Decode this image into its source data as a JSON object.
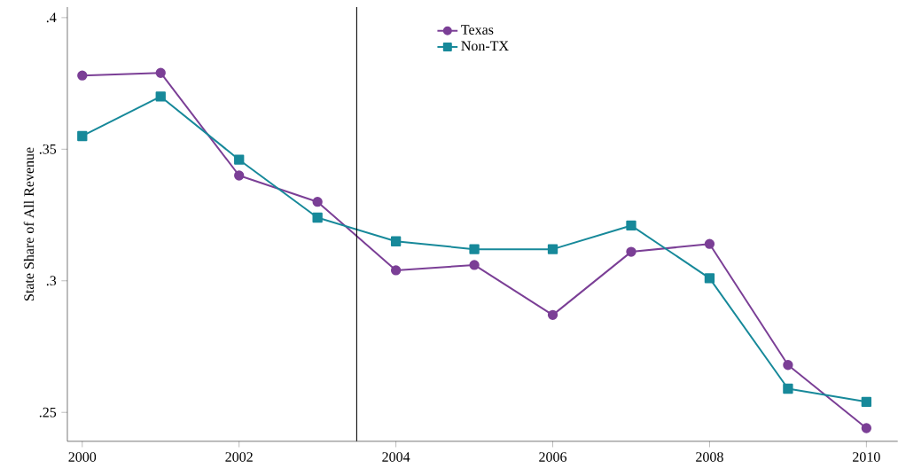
{
  "chart_data": {
    "type": "line",
    "ylabel": "State Share of All Revenue",
    "x": [
      2000,
      2001,
      2002,
      2003,
      2004,
      2005,
      2006,
      2007,
      2008,
      2009,
      2010
    ],
    "series": [
      {
        "name": "Texas",
        "color": "#7b3f96",
        "marker": "circle",
        "values": [
          0.378,
          0.379,
          0.34,
          0.33,
          0.304,
          0.306,
          0.287,
          0.311,
          0.314,
          0.268,
          0.244
        ]
      },
      {
        "name": "Non-TX",
        "color": "#17899a",
        "marker": "square",
        "values": [
          0.355,
          0.37,
          0.346,
          0.324,
          0.315,
          0.312,
          0.312,
          0.321,
          0.301,
          0.259,
          0.254
        ]
      }
    ],
    "xlim": [
      1999.81,
      2010.4
    ],
    "ylim": [
      0.239,
      0.404
    ],
    "xticks": [
      2000,
      2002,
      2004,
      2006,
      2008,
      2010
    ],
    "yticks": [
      {
        "value": 0.25,
        "label": ".25"
      },
      {
        "value": 0.3,
        "label": ".3"
      },
      {
        "value": 0.35,
        "label": ".35"
      },
      {
        "value": 0.4,
        "label": ".4"
      }
    ],
    "ref_lines": [
      {
        "axis": "x",
        "value": 2003.5,
        "color": "#000000"
      }
    ],
    "legend": "top",
    "line_style": "solid"
  }
}
